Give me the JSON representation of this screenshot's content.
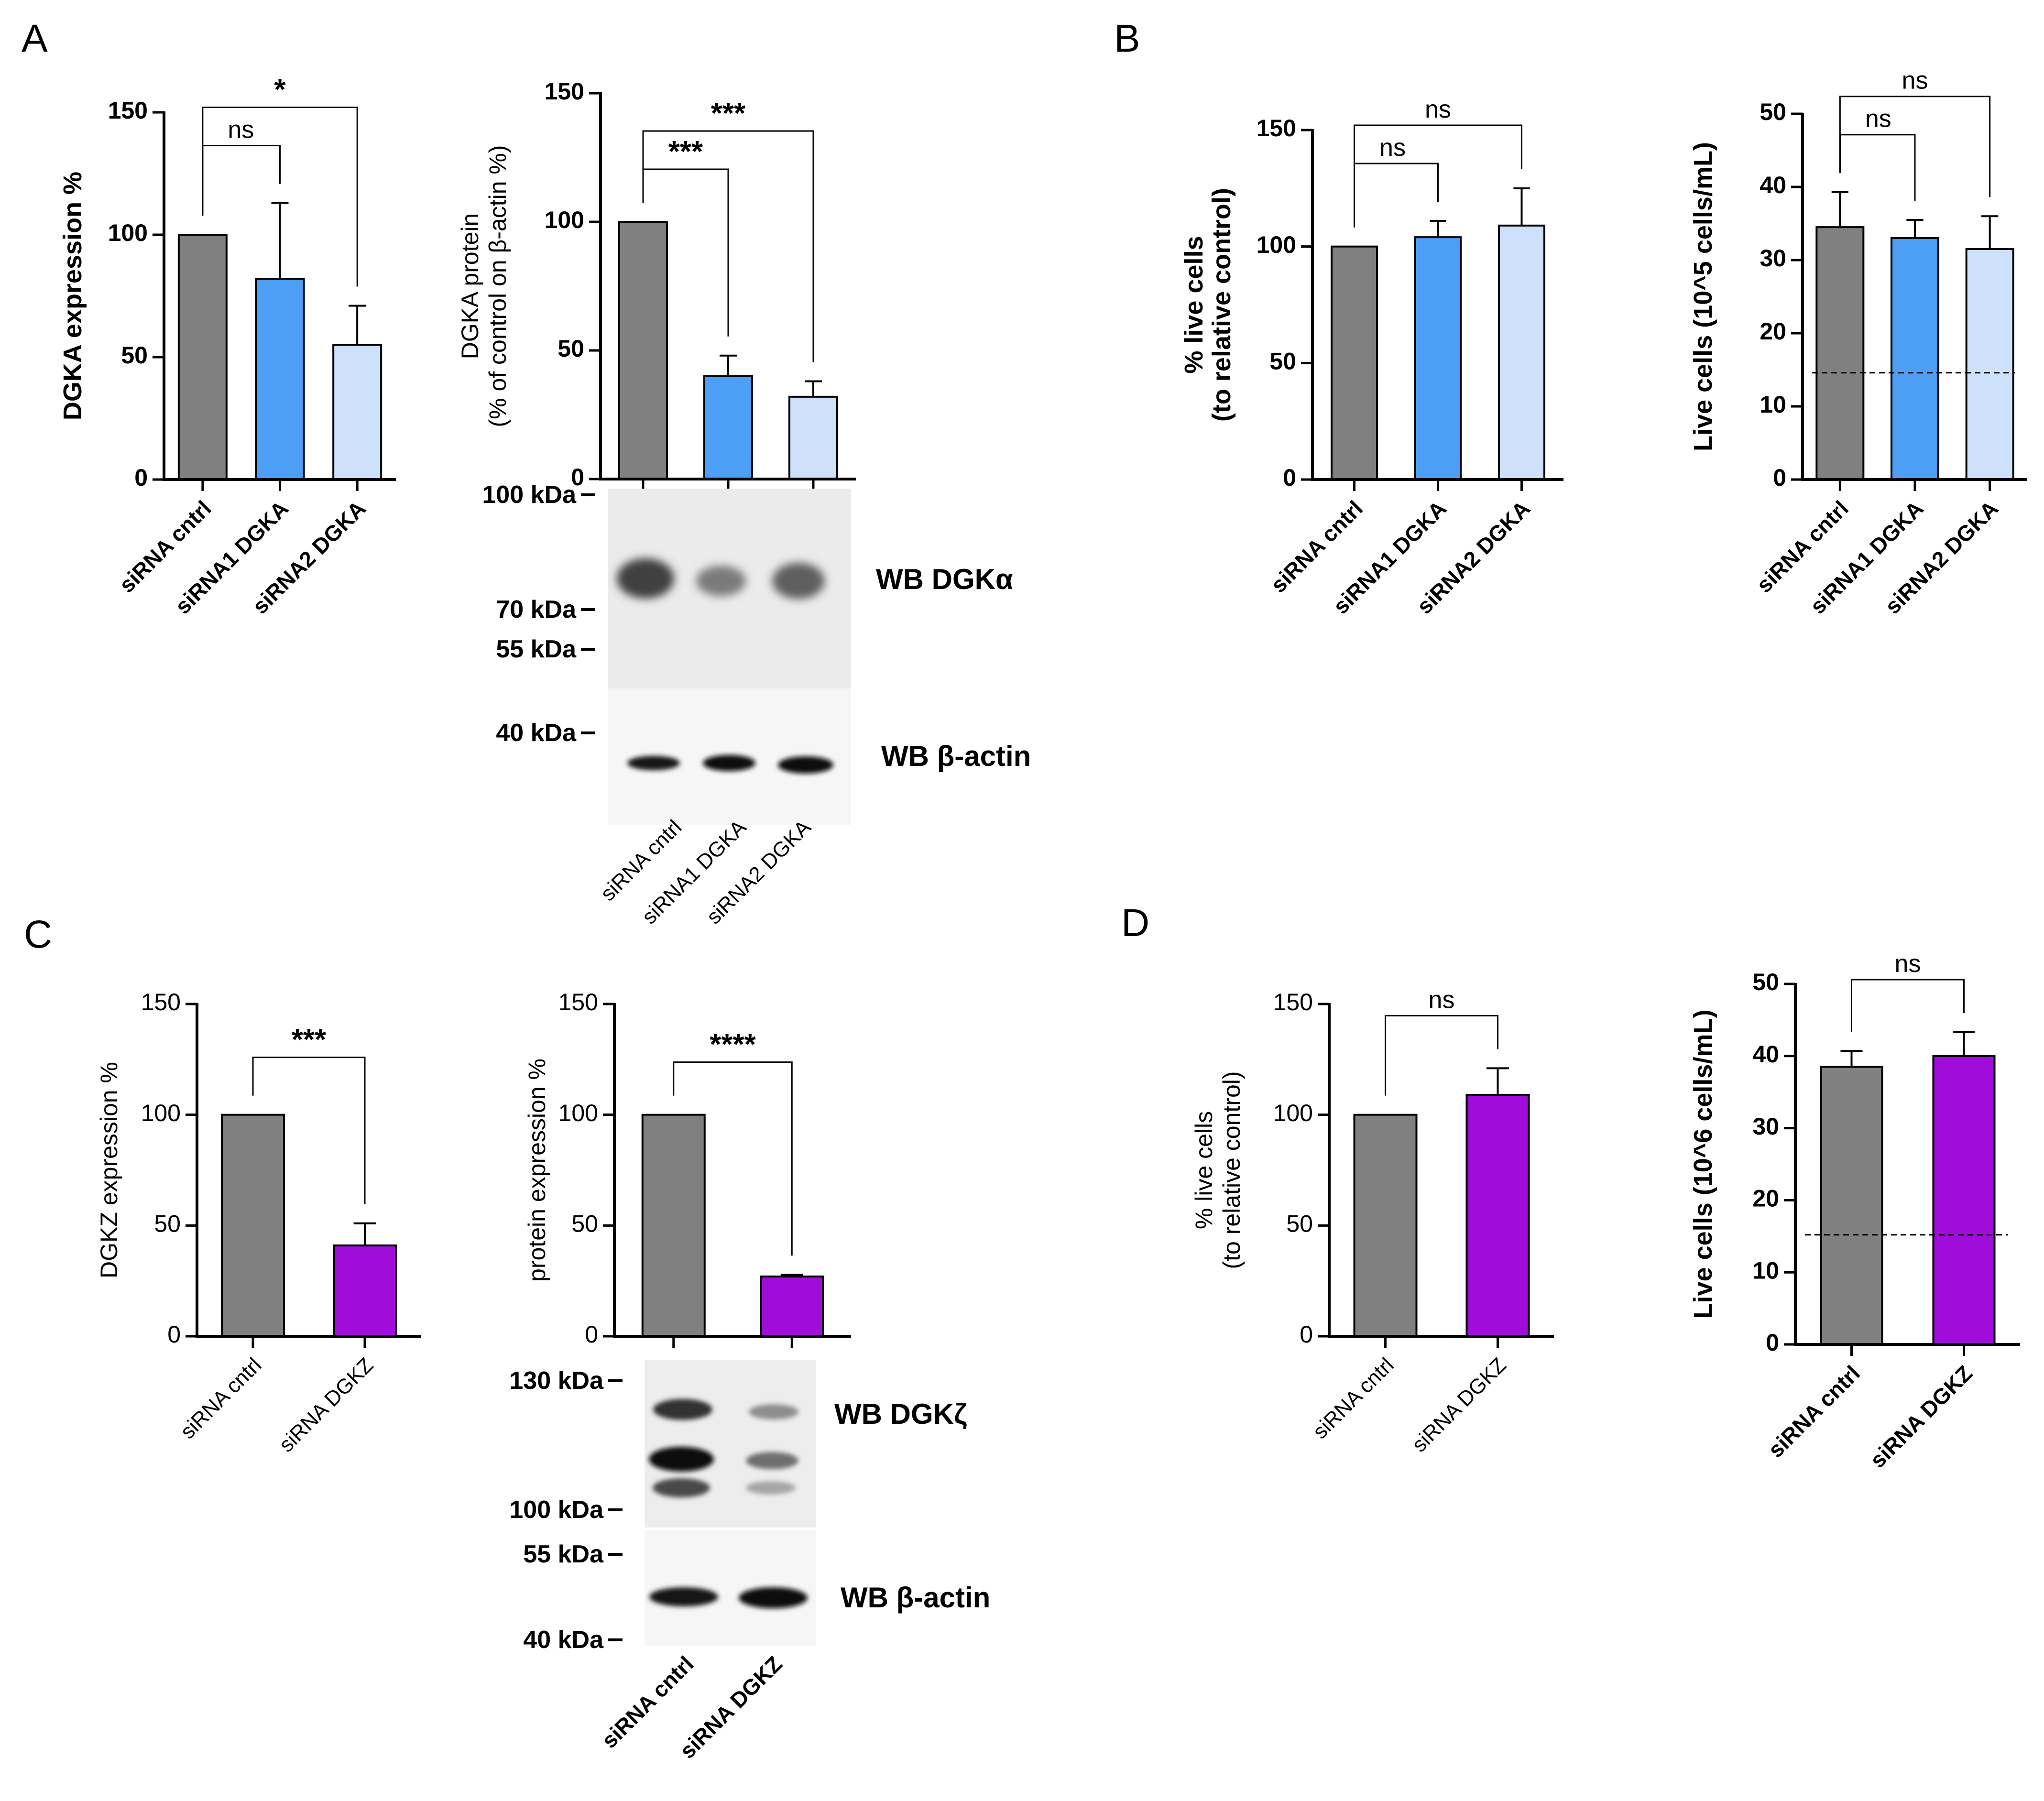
{
  "panels": [
    "A",
    "B",
    "C",
    "D"
  ],
  "colors": {
    "control": "#808080",
    "dgka1": "#4d9ff5",
    "dgka2": "#cde1fa",
    "dgkz": "#a00ddb",
    "axis": "#000000"
  },
  "chart_data": [
    {
      "id": "a1",
      "panel": "A",
      "type": "bar",
      "ylabel": "DGKA expression %",
      "ylim": [
        0,
        150
      ],
      "yticks": [
        0,
        50,
        100,
        150
      ],
      "categories": [
        "siRNA cntrl",
        "siRNA1 DGKA",
        "siRNA2 DGKA"
      ],
      "values": [
        100,
        82,
        55
      ],
      "errors": [
        0,
        31,
        16
      ],
      "colors": [
        "control",
        "dgka1",
        "dgka2"
      ],
      "significance": [
        {
          "from": 0,
          "to": 1,
          "label": "ns"
        },
        {
          "from": 0,
          "to": 2,
          "label": "*"
        }
      ]
    },
    {
      "id": "a2",
      "panel": "A",
      "type": "bar",
      "ylabel": [
        "DGKA protein",
        "(% of control on β-actin %)"
      ],
      "ylim": [
        0,
        150
      ],
      "yticks": [
        0,
        50,
        100,
        150
      ],
      "categories": [
        "siRNA cntrl",
        "siRNA1 DGKA",
        "siRNA2 DGKA"
      ],
      "values": [
        100,
        40,
        32
      ],
      "errors": [
        0,
        8,
        6
      ],
      "colors": [
        "control",
        "dgka1",
        "dgka2"
      ],
      "significance": [
        {
          "from": 0,
          "to": 1,
          "label": "***"
        },
        {
          "from": 0,
          "to": 2,
          "label": "***"
        }
      ]
    },
    {
      "id": "b1",
      "panel": "B",
      "type": "bar",
      "ylabel": [
        "% live cells",
        "(to relative control)"
      ],
      "ylim": [
        0,
        150
      ],
      "yticks": [
        0,
        50,
        100,
        150
      ],
      "categories": [
        "siRNA cntrl",
        "siRNA1 DGKA",
        "siRNA2 DGKA"
      ],
      "values": [
        100,
        104,
        109
      ],
      "errors": [
        0,
        7,
        16
      ],
      "colors": [
        "control",
        "dgka1",
        "dgka2"
      ],
      "significance": [
        {
          "from": 0,
          "to": 1,
          "label": "ns"
        },
        {
          "from": 0,
          "to": 2,
          "label": "ns"
        }
      ]
    },
    {
      "id": "b2",
      "panel": "B",
      "type": "bar",
      "ylabel": "Live cells (10^5 cells/mL)",
      "ylim": [
        0,
        50
      ],
      "yticks": [
        0,
        10,
        20,
        30,
        40,
        50
      ],
      "categories": [
        "siRNA cntrl",
        "siRNA1 DGKA",
        "siRNA2 DGKA"
      ],
      "values": [
        34.5,
        33,
        31.5
      ],
      "errors": [
        4.8,
        2.5,
        4.5
      ],
      "colors": [
        "control",
        "dgka1",
        "dgka2"
      ],
      "reference_line": 14.6,
      "significance": [
        {
          "from": 0,
          "to": 1,
          "label": "ns"
        },
        {
          "from": 0,
          "to": 2,
          "label": "ns"
        }
      ]
    },
    {
      "id": "c1",
      "panel": "C",
      "type": "bar",
      "ylabel": "DGKZ expression %",
      "ylim": [
        0,
        150
      ],
      "yticks": [
        0,
        50,
        100,
        150
      ],
      "categories": [
        "siRNA cntrl",
        "siRNA DGKZ"
      ],
      "values": [
        100,
        41
      ],
      "errors": [
        0,
        10
      ],
      "colors": [
        "control",
        "dgkz"
      ],
      "significance": [
        {
          "from": 0,
          "to": 1,
          "label": "***"
        }
      ]
    },
    {
      "id": "c2",
      "panel": "C",
      "type": "bar",
      "ylabel": "protein expression %",
      "ylim": [
        0,
        150
      ],
      "yticks": [
        0,
        50,
        100,
        150
      ],
      "categories": [
        "siRNA cntrl",
        "siRNA DGKZ"
      ],
      "values": [
        100,
        27
      ],
      "errors": [
        0,
        0.8
      ],
      "colors": [
        "control",
        "dgkz"
      ],
      "significance": [
        {
          "from": 0,
          "to": 1,
          "label": "****"
        }
      ]
    },
    {
      "id": "d1",
      "panel": "D",
      "type": "bar",
      "ylabel": [
        "% live cells",
        "(to relative control)"
      ],
      "ylim": [
        0,
        150
      ],
      "yticks": [
        0,
        50,
        100,
        150
      ],
      "categories": [
        "siRNA cntrl",
        "siRNA DGKZ"
      ],
      "values": [
        100,
        109
      ],
      "errors": [
        0,
        12
      ],
      "colors": [
        "control",
        "dgkz"
      ],
      "significance": [
        {
          "from": 0,
          "to": 1,
          "label": "ns"
        }
      ]
    },
    {
      "id": "d2",
      "panel": "D",
      "type": "bar",
      "ylabel": "Live cells (10^6 cells/mL)",
      "ylim": [
        0,
        50
      ],
      "yticks": [
        0,
        10,
        20,
        30,
        40,
        50
      ],
      "categories": [
        "siRNA cntrl",
        "siRNA DGKZ"
      ],
      "values": [
        38.5,
        40
      ],
      "errors": [
        2.2,
        3.3
      ],
      "colors": [
        "control",
        "dgkz"
      ],
      "reference_line": 15.2,
      "significance": [
        {
          "from": 0,
          "to": 1,
          "label": "ns"
        }
      ]
    }
  ],
  "blots": {
    "a": {
      "markers": [
        "100 kDa",
        "70 kDa",
        "55 kDa",
        "40 kDa"
      ],
      "labels": [
        "WB DGKα",
        "WB β-actin"
      ],
      "lanes": [
        "siRNA cntrl",
        "siRNA1 DGKA",
        "siRNA2 DGKA"
      ]
    },
    "c": {
      "markers": [
        "130 kDa",
        "100 kDa",
        "55 kDa",
        "40 kDa"
      ],
      "labels": [
        "WB DGKζ",
        "WB β-actin"
      ],
      "lanes": [
        "siRNA cntrl",
        "siRNA DGKZ"
      ]
    }
  }
}
